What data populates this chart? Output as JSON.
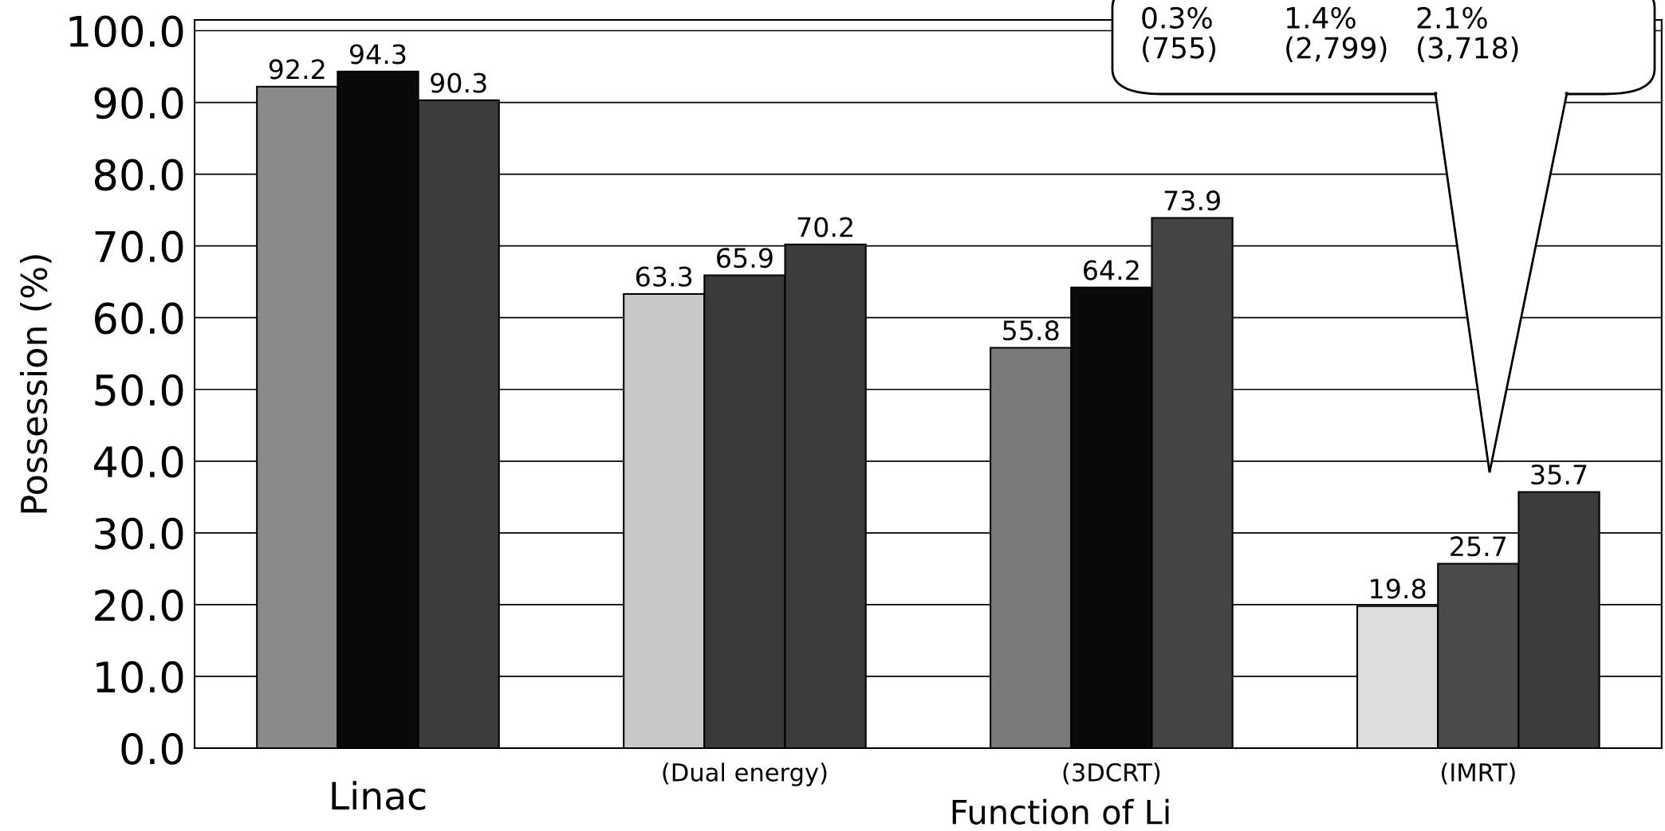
{
  "chart_data": {
    "type": "bar",
    "categories": [
      "Linac",
      "(Dual energy)",
      "(3DCRT)",
      "(IMRT)"
    ],
    "xlabel": "Function of Li",
    "ylabel": "Possession (%)",
    "series": [
      {
        "colors": [
          "#8a8a8a",
          "#c8c8c8",
          "#7a7a7a",
          "#dcdcdc"
        ],
        "values": [
          92.2,
          63.3,
          55.8,
          19.8
        ]
      },
      {
        "colors": [
          "#0a0a0a",
          "#3a3a3a",
          "#0a0a0a",
          "#4a4a4a"
        ],
        "values": [
          94.3,
          65.9,
          64.2,
          25.7
        ]
      },
      {
        "colors": [
          "#3c3c3c",
          "#3c3c3c",
          "#444444",
          "#3c3c3c"
        ],
        "values": [
          90.3,
          70.2,
          73.9,
          35.7
        ]
      }
    ],
    "data_labels": true,
    "ylim": [
      0,
      101.5
    ],
    "yticks": [
      {
        "value": 0,
        "label": "0.0"
      },
      {
        "value": 10,
        "label": "10.0"
      },
      {
        "value": 20,
        "label": "20.0"
      },
      {
        "value": 30,
        "label": "30.0"
      },
      {
        "value": 40,
        "label": "40.0"
      },
      {
        "value": 50,
        "label": "50.0"
      },
      {
        "value": 60,
        "label": "60.0"
      },
      {
        "value": 70,
        "label": "70.0"
      },
      {
        "value": 80,
        "label": "80.0"
      },
      {
        "value": 90,
        "label": "90.0"
      },
      {
        "value": 100,
        "label": "100.0"
      }
    ],
    "grid": "y",
    "legend": false,
    "annotations": [
      "0.3%\n(755)",
      "1.4%\n(2,799)",
      "2.1%\n(3,718)"
    ]
  }
}
